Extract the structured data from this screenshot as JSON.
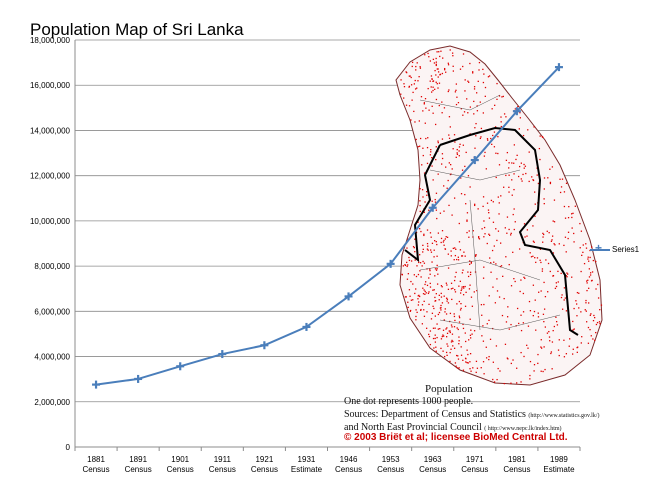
{
  "chart_data": {
    "type": "line",
    "title": "Population Map of Sri Lanka",
    "xlabel": "",
    "ylabel": "",
    "ylim": [
      0,
      18000000
    ],
    "yticks": [
      "0",
      "2,000,000",
      "4,000,000",
      "6,000,000",
      "8,000,000",
      "10,000,000",
      "12,000,000",
      "14,000,000",
      "16,000,000",
      "18,000,000"
    ],
    "categories": [
      [
        "1881",
        "Census"
      ],
      [
        "1891",
        "Census"
      ],
      [
        "1901",
        "Census"
      ],
      [
        "1911",
        "Census"
      ],
      [
        "1921",
        "Census"
      ],
      [
        "1931",
        "Estimate"
      ],
      [
        "1946",
        "Census"
      ],
      [
        "1953",
        "Census"
      ],
      [
        "1963",
        "Census"
      ],
      [
        "1971",
        "Census"
      ],
      [
        "1981",
        "Census"
      ],
      [
        "1989",
        "Estimate"
      ]
    ],
    "series": [
      {
        "name": "Series1",
        "values": [
          2760000,
          3010000,
          3570000,
          4110000,
          4500000,
          5310000,
          6660000,
          8100000,
          10580000,
          12690000,
          14850000,
          16800000
        ],
        "color": "#4a7ebb"
      }
    ],
    "grid": true,
    "legend_position": "right"
  },
  "overlay": {
    "caption_title": "Population",
    "caption_dots": "One dot represents 1000 people.",
    "source_line1": "Sources: Department of Census and Statistics",
    "source_url1": "(http://www.statistics.gov.lk/)",
    "source_line2": "and North East Provincial Council",
    "source_url2": "( http://www.nepc.lk/index.htm)",
    "copyright": "© 2003 Briët et al; licensee BioMed Central Ltd.",
    "map_colors": {
      "dots": "#e00000",
      "borders": "#000000"
    }
  }
}
